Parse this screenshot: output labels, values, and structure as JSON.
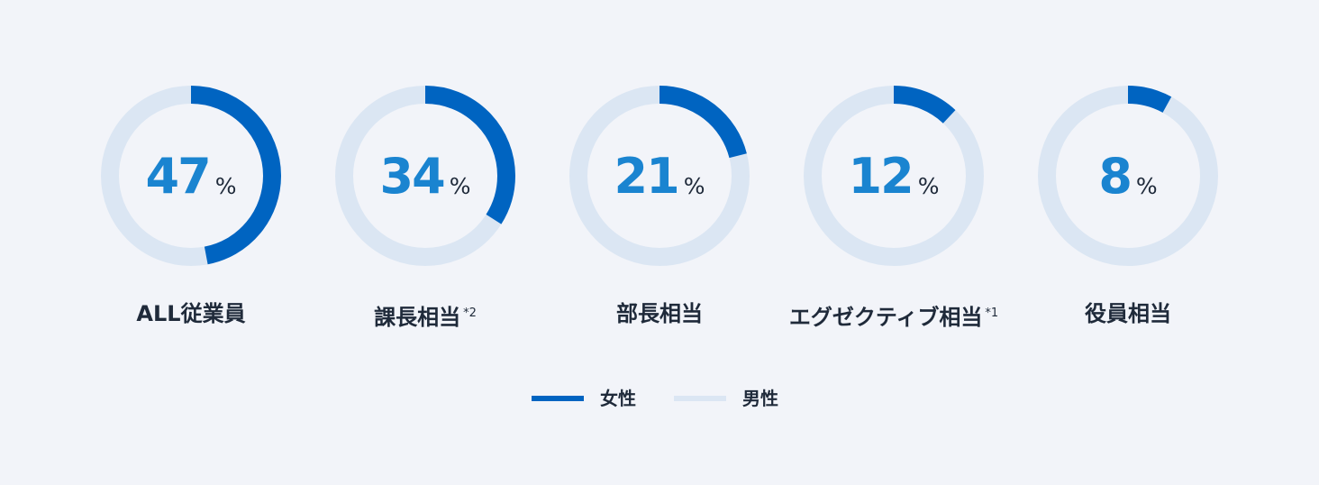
{
  "chart_data": {
    "type": "pie",
    "series": [
      {
        "name": "女性",
        "color": "#0064c1"
      },
      {
        "name": "男性",
        "color": "#dbe6f3"
      }
    ],
    "categories": [
      "ALL従業員",
      "課長相当",
      "部長相当",
      "エグゼクティブ相当",
      "役員相当"
    ],
    "items": [
      {
        "label": "ALL従業員",
        "note": "",
        "value": 47,
        "display": "47",
        "unit": "%"
      },
      {
        "label": "課長相当",
        "note": "*2",
        "value": 34,
        "display": "34",
        "unit": "%"
      },
      {
        "label": "部長相当",
        "note": "",
        "value": 21,
        "display": "21",
        "unit": "%"
      },
      {
        "label": "エグゼクティブ相当",
        "note": "*1",
        "value": 12,
        "display": "12",
        "unit": "%"
      },
      {
        "label": "役員相当",
        "note": "",
        "value": 8,
        "display": "8",
        "unit": "%"
      }
    ],
    "legend": [
      {
        "label": "女性",
        "color": "#0064c1"
      },
      {
        "label": "男性",
        "color": "#dbe6f3"
      }
    ],
    "legend_position": "bottom-center",
    "colors": {
      "female": "#0064c1",
      "male": "#dbe6f3",
      "number": "#1a84d0",
      "text": "#1f2a3a",
      "background": "#f2f4f9"
    }
  }
}
